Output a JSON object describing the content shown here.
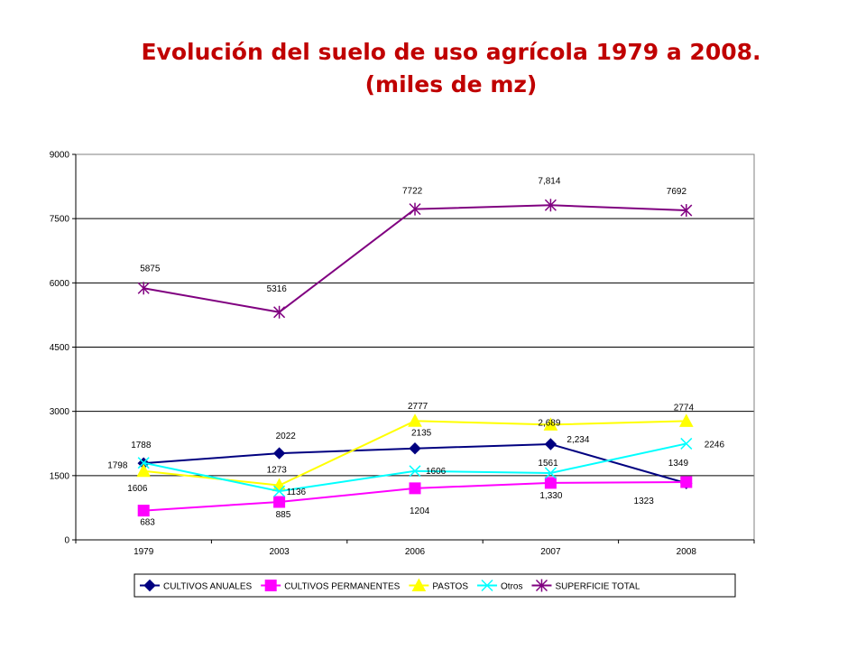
{
  "title_line1": "Evolución del suelo de uso agrícola 1979 a 2008.",
  "title_line2": "(miles de mz)",
  "chart_data": {
    "type": "line",
    "categories": [
      "1979",
      "2003",
      "2006",
      "2007",
      "2008"
    ],
    "ylim": [
      0,
      9000
    ],
    "yticks": [
      "0",
      "1500",
      "3000",
      "4500",
      "6000",
      "7500",
      "9000"
    ],
    "grid": "horizontal",
    "legend_position": "bottom",
    "series": [
      {
        "name": "CULTIVOS ANUALES",
        "color": "#000080",
        "marker": "diamond",
        "values": [
          1788,
          2022,
          2135,
          2234,
          1323
        ],
        "labels": [
          "1788",
          "2022",
          "2135",
          "2,234",
          "1323"
        ]
      },
      {
        "name": "CULTIVOS PERMANENTES",
        "color": "#ff00ff",
        "marker": "square",
        "values": [
          683,
          885,
          1204,
          1330,
          1349
        ],
        "labels": [
          "683",
          "885",
          "1204",
          "1,330",
          "1349"
        ]
      },
      {
        "name": "PASTOS",
        "color": "#ffff00",
        "marker": "triangle",
        "values": [
          1606,
          1273,
          2777,
          2689,
          2774
        ],
        "labels": [
          "1606",
          "1273",
          "2777",
          "2,689",
          "2774"
        ]
      },
      {
        "name": "Otros",
        "color": "#00ffff",
        "marker": "x",
        "values": [
          1798,
          1136,
          1606,
          1561,
          2246
        ],
        "labels": [
          "1798",
          "1136",
          "1606",
          "1561",
          "2246"
        ]
      },
      {
        "name": "SUPERFICIE TOTAL",
        "color": "#800080",
        "marker": "star",
        "values": [
          5875,
          5316,
          7722,
          7814,
          7692
        ],
        "labels": [
          "5875",
          "5316",
          "7722",
          "7,814",
          "7692"
        ]
      }
    ]
  }
}
